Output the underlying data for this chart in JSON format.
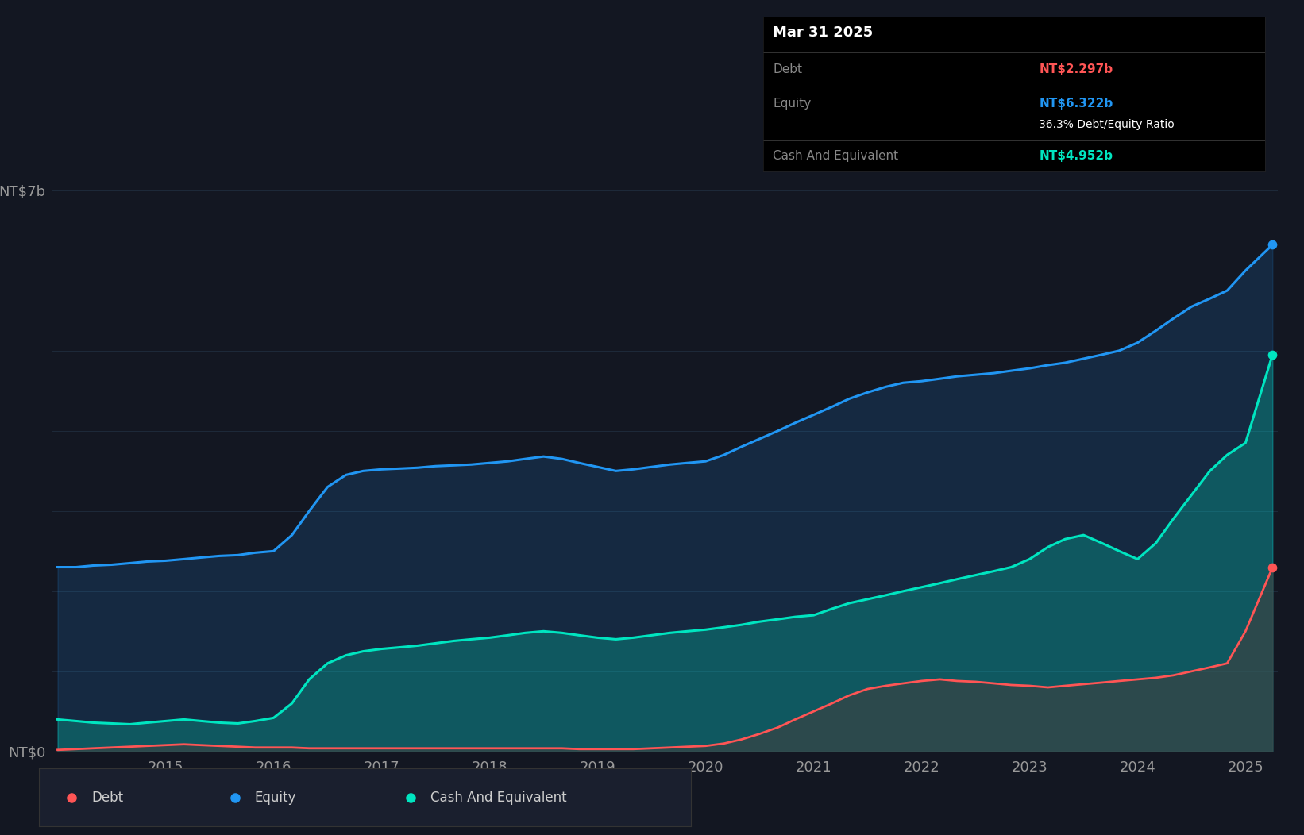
{
  "bg_color": "#131722",
  "grid_color": "#1e2a3a",
  "debt_color": "#ff5555",
  "equity_color": "#2196f3",
  "cash_color": "#00e5c0",
  "debt_label": "Debt",
  "equity_label": "Equity",
  "cash_label": "Cash And Equivalent",
  "title_box_text": "Mar 31 2025",
  "debt_value": "NT$2.297b",
  "equity_value": "NT$6.322b",
  "ratio_text": "36.3% Debt/Equity Ratio",
  "cash_value": "NT$4.952b",
  "ylabel_top": "NT$7b",
  "ylabel_bottom": "NT$0",
  "years": [
    2014.0,
    2014.17,
    2014.33,
    2014.5,
    2014.67,
    2014.83,
    2015.0,
    2015.17,
    2015.33,
    2015.5,
    2015.67,
    2015.83,
    2016.0,
    2016.17,
    2016.33,
    2016.5,
    2016.67,
    2016.83,
    2017.0,
    2017.17,
    2017.33,
    2017.5,
    2017.67,
    2017.83,
    2018.0,
    2018.17,
    2018.33,
    2018.5,
    2018.67,
    2018.83,
    2019.0,
    2019.17,
    2019.33,
    2019.5,
    2019.67,
    2019.83,
    2020.0,
    2020.17,
    2020.33,
    2020.5,
    2020.67,
    2020.83,
    2021.0,
    2021.17,
    2021.33,
    2021.5,
    2021.67,
    2021.83,
    2022.0,
    2022.17,
    2022.33,
    2022.5,
    2022.67,
    2022.83,
    2023.0,
    2023.17,
    2023.33,
    2023.5,
    2023.67,
    2023.83,
    2024.0,
    2024.17,
    2024.33,
    2024.5,
    2024.67,
    2024.83,
    2025.0,
    2025.25
  ],
  "equity": [
    2.3,
    2.3,
    2.32,
    2.33,
    2.35,
    2.37,
    2.38,
    2.4,
    2.42,
    2.44,
    2.45,
    2.48,
    2.5,
    2.7,
    3.0,
    3.3,
    3.45,
    3.5,
    3.52,
    3.53,
    3.54,
    3.56,
    3.57,
    3.58,
    3.6,
    3.62,
    3.65,
    3.68,
    3.65,
    3.6,
    3.55,
    3.5,
    3.52,
    3.55,
    3.58,
    3.6,
    3.62,
    3.7,
    3.8,
    3.9,
    4.0,
    4.1,
    4.2,
    4.3,
    4.4,
    4.48,
    4.55,
    4.6,
    4.62,
    4.65,
    4.68,
    4.7,
    4.72,
    4.75,
    4.78,
    4.82,
    4.85,
    4.9,
    4.95,
    5.0,
    5.1,
    5.25,
    5.4,
    5.55,
    5.65,
    5.75,
    6.0,
    6.322
  ],
  "debt": [
    0.02,
    0.03,
    0.04,
    0.05,
    0.06,
    0.07,
    0.08,
    0.09,
    0.08,
    0.07,
    0.06,
    0.05,
    0.05,
    0.05,
    0.04,
    0.04,
    0.04,
    0.04,
    0.04,
    0.04,
    0.04,
    0.04,
    0.04,
    0.04,
    0.04,
    0.04,
    0.04,
    0.04,
    0.04,
    0.03,
    0.03,
    0.03,
    0.03,
    0.04,
    0.05,
    0.06,
    0.07,
    0.1,
    0.15,
    0.22,
    0.3,
    0.4,
    0.5,
    0.6,
    0.7,
    0.78,
    0.82,
    0.85,
    0.88,
    0.9,
    0.88,
    0.87,
    0.85,
    0.83,
    0.82,
    0.8,
    0.82,
    0.84,
    0.86,
    0.88,
    0.9,
    0.92,
    0.95,
    1.0,
    1.05,
    1.1,
    1.5,
    2.297
  ],
  "cash": [
    0.4,
    0.38,
    0.36,
    0.35,
    0.34,
    0.36,
    0.38,
    0.4,
    0.38,
    0.36,
    0.35,
    0.38,
    0.42,
    0.6,
    0.9,
    1.1,
    1.2,
    1.25,
    1.28,
    1.3,
    1.32,
    1.35,
    1.38,
    1.4,
    1.42,
    1.45,
    1.48,
    1.5,
    1.48,
    1.45,
    1.42,
    1.4,
    1.42,
    1.45,
    1.48,
    1.5,
    1.52,
    1.55,
    1.58,
    1.62,
    1.65,
    1.68,
    1.7,
    1.78,
    1.85,
    1.9,
    1.95,
    2.0,
    2.05,
    2.1,
    2.15,
    2.2,
    2.25,
    2.3,
    2.4,
    2.55,
    2.65,
    2.7,
    2.6,
    2.5,
    2.4,
    2.6,
    2.9,
    3.2,
    3.5,
    3.7,
    3.85,
    4.952
  ]
}
